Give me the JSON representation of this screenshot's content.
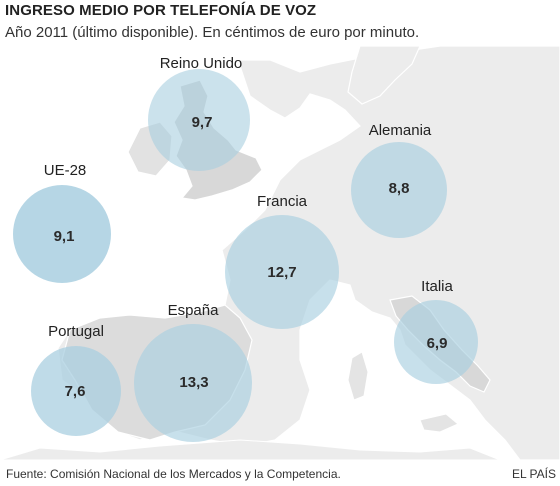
{
  "title": "INGRESO MEDIO POR TELEFONÍA DE VOZ",
  "subtitle": "Año 2011 (último disponible). En céntimos de euro por minuto.",
  "regions": [
    {
      "name": "Reino Unido",
      "value": "9,7",
      "numeric": 9.7
    },
    {
      "name": "UE-28",
      "value": "9,1",
      "numeric": 9.1
    },
    {
      "name": "Alemania",
      "value": "8,8",
      "numeric": 8.8
    },
    {
      "name": "Francia",
      "value": "12,7",
      "numeric": 12.7
    },
    {
      "name": "Italia",
      "value": "6,9",
      "numeric": 6.9
    },
    {
      "name": "Portugal",
      "value": "7,6",
      "numeric": 7.6
    },
    {
      "name": "España",
      "value": "13,3",
      "numeric": 13.3
    }
  ],
  "colors": {
    "bubble": "#a9cfe0",
    "land": "#ececec",
    "land_highlight": "#d8d8d8",
    "sea": "#ffffff",
    "border": "#ffffff"
  },
  "source": "Fuente: Comisión Nacional de los Mercados y la Competencia.",
  "credit": "EL PAÍS"
}
